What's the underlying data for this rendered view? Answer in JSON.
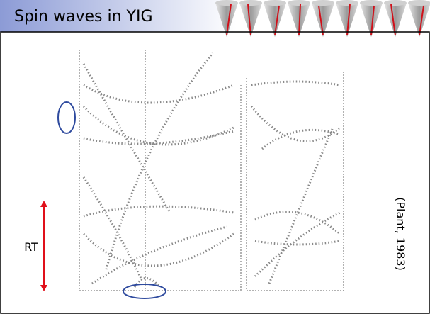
{
  "header": {
    "title": "Spin waves in YIG"
  },
  "figure": {
    "side_label": "RT",
    "citation": "(Plant, 1983)"
  }
}
